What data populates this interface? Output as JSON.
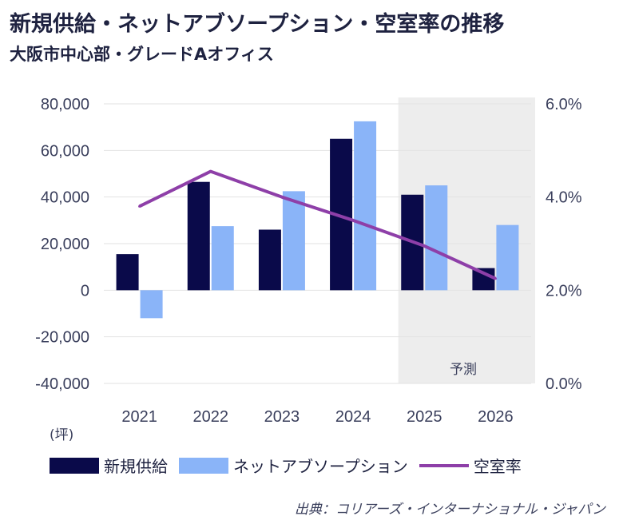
{
  "title": "新規供給・ネットアブソープション・空室率の推移",
  "subtitle": "大阪市中心部・グレードAオフィス",
  "unit_label": "(坪)",
  "forecast_label": "予測",
  "source": "出典：コリアーズ・インターナショナル・ジャパン",
  "colors": {
    "new_supply": "#0a0a4a",
    "absorption": "#8ab4f8",
    "vacancy": "#8e3fa8",
    "forecast_bg": "#ededed"
  },
  "chart_data": {
    "type": "bar",
    "categories": [
      "2021",
      "2022",
      "2023",
      "2024",
      "2025",
      "2026"
    ],
    "series": [
      {
        "name": "新規供給",
        "type": "bar",
        "axis": "left",
        "values": [
          15500,
          46500,
          26000,
          65000,
          41000,
          9500
        ]
      },
      {
        "name": "ネットアブソープション",
        "type": "bar",
        "axis": "left",
        "values": [
          -12000,
          27500,
          42500,
          72500,
          45000,
          28000
        ]
      },
      {
        "name": "空室率",
        "type": "line",
        "axis": "right",
        "values": [
          3.8,
          4.55,
          4.0,
          3.5,
          2.95,
          2.25
        ]
      }
    ],
    "y_left": {
      "min": -40000,
      "max": 80000,
      "ticks": [
        "80,000",
        "60,000",
        "40,000",
        "20,000",
        "0",
        "-20,000",
        "-40,000"
      ]
    },
    "y_right": {
      "min": 0,
      "max": 6,
      "ticks": [
        "6.0%",
        "4.0%",
        "2.0%",
        "0.0%"
      ]
    },
    "forecast_categories": [
      "2025",
      "2026"
    ],
    "legend": "bottom",
    "grid": true
  }
}
